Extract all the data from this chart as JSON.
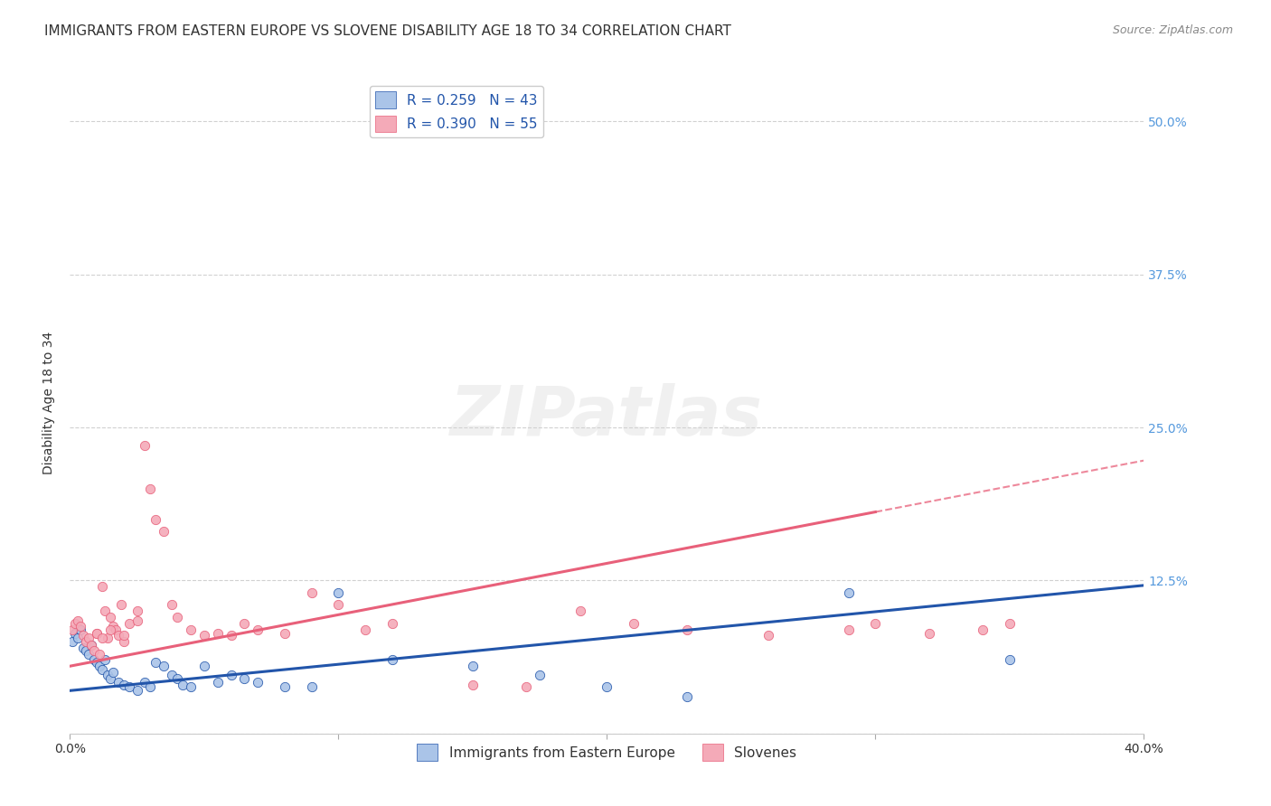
{
  "title": "IMMIGRANTS FROM EASTERN EUROPE VS SLOVENE DISABILITY AGE 18 TO 34 CORRELATION CHART",
  "source": "Source: ZipAtlas.com",
  "ylabel": "Disability Age 18 to 34",
  "xlim": [
    0.0,
    0.4
  ],
  "ylim": [
    0.0,
    0.54
  ],
  "xticks": [
    0.0,
    0.1,
    0.2,
    0.3,
    0.4
  ],
  "xticklabels": [
    "0.0%",
    "",
    "",
    "",
    "40.0%"
  ],
  "ytick_positions": [
    0.0,
    0.125,
    0.25,
    0.375,
    0.5
  ],
  "yticklabels": [
    "",
    "12.5%",
    "25.0%",
    "37.5%",
    "50.0%"
  ],
  "grid_color": "#cccccc",
  "background_color": "#ffffff",
  "series1_color": "#aac4e8",
  "series2_color": "#f4aab8",
  "line1_color": "#2255aa",
  "line2_color": "#e8607a",
  "legend_r1": "R = 0.259",
  "legend_n1": "N = 43",
  "legend_r2": "R = 0.390",
  "legend_n2": "N = 55",
  "legend_label1": "Immigrants from Eastern Europe",
  "legend_label2": "Slovenes",
  "line1_intercept": 0.035,
  "line1_slope": 0.215,
  "line2_intercept": 0.055,
  "line2_slope": 0.42,
  "line2_data_max": 0.3,
  "series1_x": [
    0.001,
    0.002,
    0.003,
    0.004,
    0.005,
    0.006,
    0.007,
    0.008,
    0.009,
    0.01,
    0.011,
    0.012,
    0.013,
    0.014,
    0.015,
    0.016,
    0.018,
    0.02,
    0.022,
    0.025,
    0.028,
    0.03,
    0.032,
    0.035,
    0.038,
    0.04,
    0.042,
    0.045,
    0.05,
    0.055,
    0.06,
    0.065,
    0.07,
    0.08,
    0.09,
    0.1,
    0.12,
    0.15,
    0.175,
    0.2,
    0.23,
    0.29,
    0.35
  ],
  "series1_y": [
    0.075,
    0.082,
    0.078,
    0.085,
    0.07,
    0.068,
    0.065,
    0.072,
    0.06,
    0.058,
    0.055,
    0.052,
    0.06,
    0.048,
    0.045,
    0.05,
    0.042,
    0.04,
    0.038,
    0.035,
    0.042,
    0.038,
    0.058,
    0.055,
    0.048,
    0.045,
    0.04,
    0.038,
    0.055,
    0.042,
    0.048,
    0.045,
    0.042,
    0.038,
    0.038,
    0.115,
    0.06,
    0.055,
    0.048,
    0.038,
    0.03,
    0.115,
    0.06
  ],
  "series2_x": [
    0.001,
    0.002,
    0.003,
    0.004,
    0.005,
    0.006,
    0.007,
    0.008,
    0.009,
    0.01,
    0.011,
    0.012,
    0.013,
    0.014,
    0.015,
    0.016,
    0.017,
    0.018,
    0.019,
    0.02,
    0.022,
    0.025,
    0.028,
    0.03,
    0.032,
    0.035,
    0.038,
    0.04,
    0.045,
    0.05,
    0.055,
    0.06,
    0.065,
    0.07,
    0.08,
    0.09,
    0.1,
    0.11,
    0.12,
    0.15,
    0.17,
    0.19,
    0.21,
    0.23,
    0.26,
    0.29,
    0.3,
    0.32,
    0.34,
    0.35,
    0.01,
    0.012,
    0.015,
    0.02,
    0.025
  ],
  "series2_y": [
    0.085,
    0.09,
    0.092,
    0.088,
    0.08,
    0.075,
    0.078,
    0.072,
    0.068,
    0.082,
    0.065,
    0.12,
    0.1,
    0.078,
    0.095,
    0.088,
    0.085,
    0.08,
    0.105,
    0.075,
    0.09,
    0.1,
    0.235,
    0.2,
    0.175,
    0.165,
    0.105,
    0.095,
    0.085,
    0.08,
    0.082,
    0.08,
    0.09,
    0.085,
    0.082,
    0.115,
    0.105,
    0.085,
    0.09,
    0.04,
    0.038,
    0.1,
    0.09,
    0.085,
    0.08,
    0.085,
    0.09,
    0.082,
    0.085,
    0.09,
    0.082,
    0.078,
    0.085,
    0.08,
    0.092
  ],
  "watermark": "ZIPatlas",
  "title_fontsize": 11,
  "axis_label_fontsize": 10,
  "tick_fontsize": 10,
  "legend_fontsize": 11
}
